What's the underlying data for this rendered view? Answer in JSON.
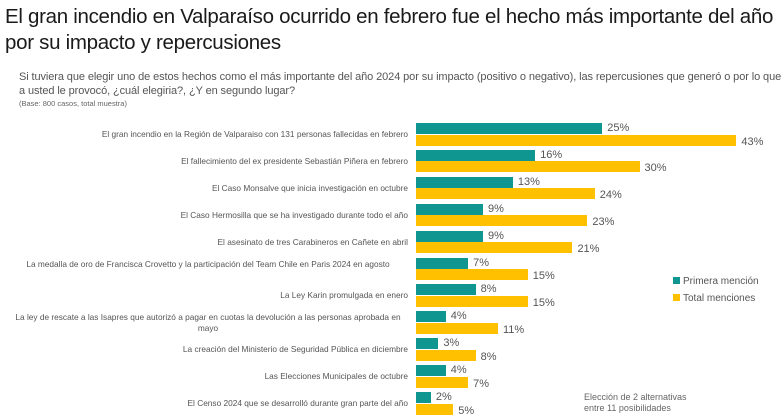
{
  "header": {
    "title": "El gran incendio en Valparaíso ocurrido en febrero fue el hecho más importante del año por su impacto y repercusiones",
    "question": "Si tuviera que elegir uno de estos hechos como el más importante del año 2024 por su impacto (positivo o negativo), las repercusiones que generó o por lo que a usted le provocó, ¿cuál elegiria?, ¿Y en segundo lugar?",
    "base": "(Base: 800 casos, total muestra)"
  },
  "note": {
    "line1": "Elección de 2 alternativas",
    "line2": "entre 11 posibilidades"
  },
  "chart_data": {
    "type": "bar",
    "orientation": "horizontal",
    "title": "El gran incendio en Valparaíso ocurrido en febrero fue el hecho más importante del año por su impacto y repercusiones",
    "xlabel": "",
    "ylabel": "",
    "xlim": [
      0,
      50
    ],
    "unit": "%",
    "legend_position": "right",
    "categories": [
      "El gran incendio en la Región de Valparaiso con 131 personas fallecidas en febrero",
      "El fallecimiento del ex presidente Sebastián Piñera en febrero",
      "El Caso Monsalve que inicia investigación en octubre",
      "El Caso Hermosilla que se ha investigado durante todo el año",
      "El asesinato de tres Carabineros en Cañete en abril",
      "La medalla de oro de Francisca Crovetto y la participación del Team Chile en Paris 2024 en agosto",
      "La Ley Karin promulgada en enero",
      "La ley de rescate a las Isapres que autorizó a pagar en cuotas la devolución a las personas aprobada en mayo",
      "La creación del Ministerio de Seguridad Pública en diciembre",
      "Las Elecciones Municipales de octubre",
      "El Censo 2024 que se desarrolló durante gran parte del año"
    ],
    "series": [
      {
        "name": "Primera mención",
        "color": "#0f9690",
        "values": [
          25,
          16,
          13,
          9,
          9,
          7,
          8,
          4,
          3,
          4,
          2
        ],
        "labels": [
          "25%",
          "16%",
          "13%",
          "9%",
          "9%",
          "7%",
          "8%",
          "4%",
          "3%",
          "4%",
          "2%"
        ]
      },
      {
        "name": "Total menciones",
        "color": "#ffc000",
        "values": [
          43,
          30,
          24,
          23,
          21,
          15,
          15,
          11,
          8,
          7,
          5
        ],
        "labels": [
          "43%",
          "30%",
          "24%",
          "23%",
          "21%",
          "15%",
          "15%",
          "11%",
          "8%",
          "7%",
          "5%"
        ]
      }
    ]
  }
}
